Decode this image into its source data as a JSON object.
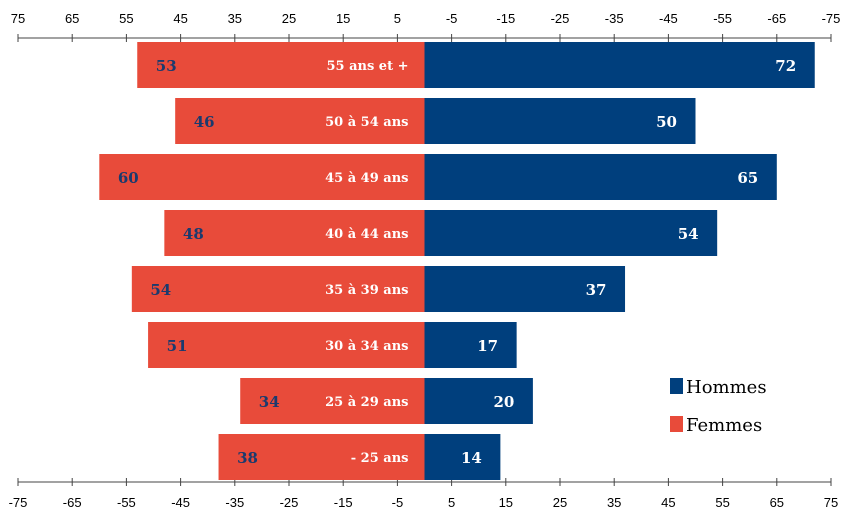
{
  "chart_data": {
    "type": "bar",
    "orientation": "horizontal",
    "categories": [
      "55 ans et +",
      "50 à 54 ans",
      "45 à 49 ans",
      "40 à 44 ans",
      "35 à 39 ans",
      "30 à 34 ans",
      "25 à 29 ans",
      "- 25 ans"
    ],
    "series": [
      {
        "name": "Femmes",
        "values": [
          53,
          46,
          60,
          48,
          54,
          51,
          34,
          38
        ],
        "color": "#e84b3a"
      },
      {
        "name": "Hommes",
        "values": [
          72,
          50,
          65,
          54,
          37,
          17,
          20,
          14
        ],
        "color": "#003f7d"
      }
    ],
    "top_axis_ticks": [
      "75",
      "65",
      "55",
      "45",
      "35",
      "25",
      "15",
      "5",
      "-5",
      "-15",
      "-25",
      "-35",
      "-45",
      "-55",
      "-65",
      "-75"
    ],
    "bottom_axis_ticks": [
      "-75",
      "-65",
      "-55",
      "-45",
      "-35",
      "-25",
      "-15",
      "-5",
      "5",
      "15",
      "25",
      "35",
      "45",
      "55",
      "65",
      "75"
    ],
    "xlim": [
      -75,
      75
    ],
    "grid": false,
    "legend_position": "bottom-right",
    "label_color_left": "#1a3a6e"
  }
}
